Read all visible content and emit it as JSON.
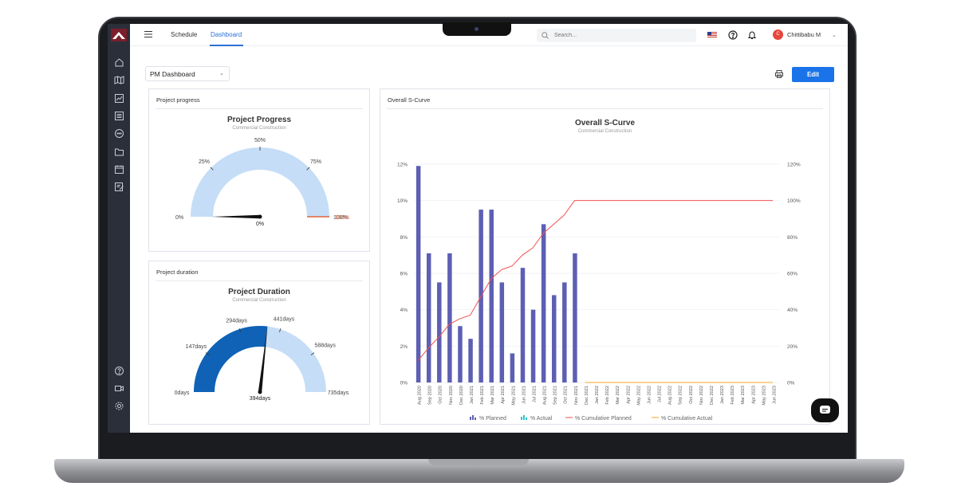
{
  "topbar": {
    "tabs": [
      {
        "label": "Schedule"
      },
      {
        "label": "Dashboard"
      }
    ],
    "search_placeholder": "Search...",
    "user_initial": "C",
    "user_name": "Chittibabu M"
  },
  "toolbar": {
    "dashboard_select": "PM Dashboard",
    "edit_label": "Edit"
  },
  "colors": {
    "accent": "#1a73e8",
    "sidebar": "#2b2f3a",
    "planned": "#5c5fb3",
    "actual": "#2ec4c4",
    "cum_planned": "#f0524f",
    "cum_actual": "#f5a623",
    "gauge_light": "#c5ddf6",
    "gauge_dark": "#0f62b5"
  },
  "progress_panel": {
    "title": "Project progress",
    "chart_title": "Project Progress",
    "chart_subtitle": "Commercial Construction",
    "ticks": [
      "0%",
      "25%",
      "50%",
      "75%",
      "100%"
    ],
    "overlap_label": "100%",
    "value": 0,
    "value_label": "0%"
  },
  "duration_panel": {
    "title": "Project duration",
    "chart_title": "Project Duration",
    "chart_subtitle": "Commercial Construction",
    "ticks": [
      "0days",
      "147days",
      "294days",
      "441days",
      "588days",
      "735days"
    ],
    "max": 735,
    "value": 394,
    "value_label": "394days"
  },
  "scurve_panel": {
    "title": "Overall S-Curve",
    "chart_title": "Overall S-Curve",
    "chart_subtitle": "Commercial Construction"
  },
  "chart_data": {
    "type": "bar",
    "title": "Overall S-Curve",
    "subtitle": "Commercial Construction",
    "categories": [
      "Aug 2020",
      "Sep 2020",
      "Oct 2020",
      "Nov 2020",
      "Dec 2020",
      "Jan 2021",
      "Feb 2021",
      "Mar 2021",
      "Apr 2021",
      "May 2021",
      "Jun 2021",
      "Jul 2021",
      "Aug 2021",
      "Sep 2021",
      "Oct 2021",
      "Nov 2021",
      "Dec 2021",
      "Jan 2022",
      "Feb 2022",
      "Mar 2022",
      "Apr 2022",
      "May 2022",
      "Jun 2022",
      "Jul 2022",
      "Aug 2022",
      "Sep 2022",
      "Oct 2022",
      "Nov 2022",
      "Dec 2022",
      "Jan 2023",
      "Feb 2023",
      "Mar 2023",
      "Apr 2023",
      "May 2023",
      "Jun 2023"
    ],
    "y_left_ticks": [
      "0%",
      "2%",
      "4%",
      "6%",
      "8%",
      "10%",
      "12%"
    ],
    "y_right_ticks": [
      "0%",
      "20%",
      "40%",
      "60%",
      "80%",
      "100%",
      "120%"
    ],
    "ylim": [
      0,
      12
    ],
    "y2lim": [
      0,
      120
    ],
    "series": [
      {
        "name": "% Planned",
        "type": "bar",
        "values": [
          11.9,
          7.1,
          5.5,
          7.1,
          3.1,
          2.4,
          9.5,
          9.5,
          5.5,
          1.6,
          6.3,
          4.0,
          8.7,
          4.8,
          5.5,
          7.1,
          0,
          0,
          0,
          0,
          0,
          0,
          0,
          0,
          0,
          0,
          0,
          0,
          0,
          0,
          0,
          0,
          0,
          0,
          0
        ]
      },
      {
        "name": "% Actual",
        "type": "bar",
        "values": [
          0,
          0,
          0,
          0,
          0,
          0,
          0,
          0,
          0,
          0,
          0,
          0,
          0,
          0,
          0,
          0,
          0,
          0,
          0,
          0,
          0,
          0,
          0,
          0,
          0,
          0,
          0,
          0,
          0,
          0,
          0,
          0,
          0,
          0,
          0
        ]
      },
      {
        "name": "% Cumulative Planned",
        "type": "line",
        "axis": "right",
        "values": [
          12,
          19,
          25,
          32,
          35,
          37,
          47,
          57,
          62,
          64,
          70,
          74,
          82,
          87,
          92,
          100,
          100,
          100,
          100,
          100,
          100,
          100,
          100,
          100,
          100,
          100,
          100,
          100,
          100,
          100,
          100,
          100,
          100,
          100,
          100
        ]
      },
      {
        "name": "% Cumulative Actual",
        "type": "line",
        "axis": "right",
        "values": [
          0,
          0,
          0,
          0,
          0,
          0,
          0,
          0,
          0,
          0,
          0,
          0,
          0,
          0,
          0,
          0,
          0,
          0,
          0,
          0,
          0,
          0,
          0,
          0,
          0,
          0,
          0,
          0,
          0,
          0,
          0,
          0,
          0,
          0,
          0
        ]
      }
    ],
    "legend": "bottom"
  }
}
